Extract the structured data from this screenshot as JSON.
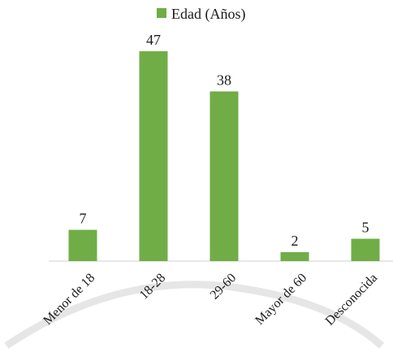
{
  "colors": {
    "bar": "#70ad47",
    "axis": "#d0d0d0",
    "text": "#1a1a1a"
  },
  "chart_data": {
    "type": "bar",
    "legend_position": "top",
    "grid": false,
    "categories": [
      "Menor de 18",
      "18-28",
      "29-60",
      "Mayor de 60",
      "Desconocida"
    ],
    "series": [
      {
        "name": "Edad (Años)",
        "values": [
          7,
          47,
          38,
          2,
          5
        ]
      }
    ],
    "ylim": [
      0,
      47
    ],
    "data_labels": true
  }
}
